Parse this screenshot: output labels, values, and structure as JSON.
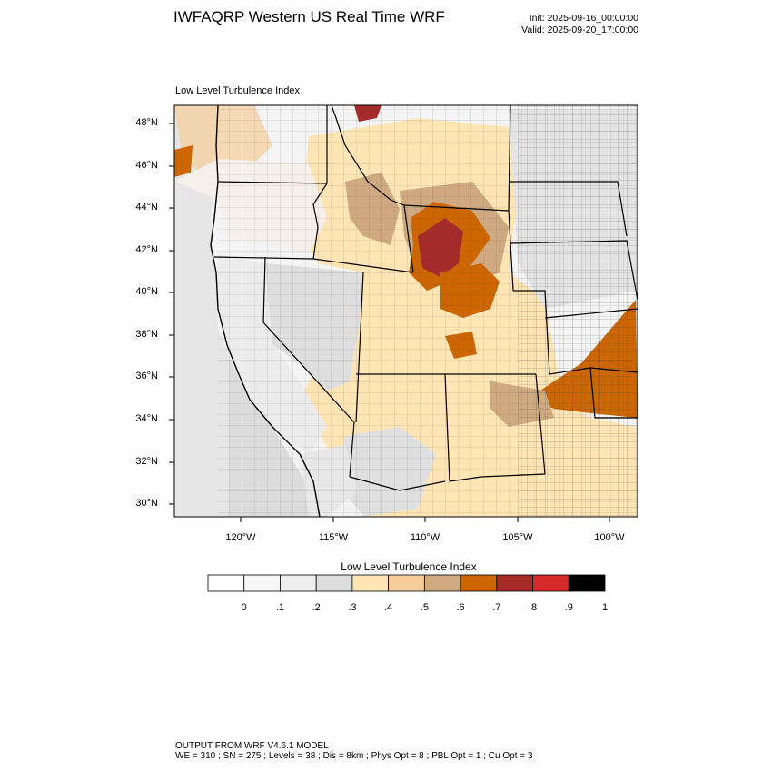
{
  "header": {
    "title": "IWFAQRP Western US Real Time WRF",
    "init": "Init: 2025-09-16_00:00:00",
    "valid": "Valid: 2025-09-20_17:00:00"
  },
  "map": {
    "field_label": "Low Level Turbulence Index",
    "lat_ticks": [
      "48°N",
      "46°N",
      "44°N",
      "42°N",
      "40°N",
      "38°N",
      "36°N",
      "34°N",
      "32°N",
      "30°N"
    ],
    "lon_ticks": [
      "120°W",
      "115°W",
      "110°W",
      "105°W",
      "100°W"
    ],
    "colors": {
      "ocean_gray": "#dcdcdc",
      "state_border": "#000000",
      "county_border": "#333333"
    }
  },
  "colorbar": {
    "title": "Low Level Turbulence Index",
    "colors": [
      "#ffffff",
      "#f7f7f7",
      "#ededed",
      "#dddddd",
      "#ffe5b4",
      "#f5cc98",
      "#cfaa80",
      "#cc6600",
      "#a52a2a",
      "#d42a2a",
      "#000000"
    ],
    "labels": [
      "0",
      ".1",
      ".2",
      ".3",
      ".4",
      ".5",
      ".6",
      ".7",
      ".8",
      ".9",
      "1"
    ]
  },
  "footer": {
    "line1": "OUTPUT FROM WRF V4.6.1 MODEL",
    "line2": "WE = 310 ; SN = 275 ; Levels = 38 ; Dis = 8km ; Phys Opt = 8 ; PBL Opt = 1 ; Cu Opt = 3"
  }
}
